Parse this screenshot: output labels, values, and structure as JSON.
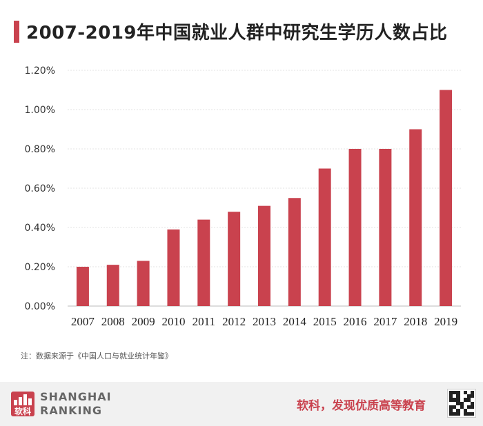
{
  "header": {
    "title": "2007-2019年中国就业人群中研究生学历人数占比"
  },
  "chart_data": {
    "type": "bar",
    "title": "2007-2019年中国就业人群中研究生学历人数占比",
    "categories": [
      "2007",
      "2008",
      "2009",
      "2010",
      "2011",
      "2012",
      "2013",
      "2014",
      "2015",
      "2016",
      "2017",
      "2018",
      "2019"
    ],
    "values": [
      0.2,
      0.21,
      0.23,
      0.39,
      0.44,
      0.48,
      0.51,
      0.55,
      0.7,
      0.8,
      0.8,
      0.9,
      1.1
    ],
    "yticks": [
      "0.00%",
      "0.20%",
      "0.40%",
      "0.60%",
      "0.80%",
      "1.00%",
      "1.20%"
    ],
    "ylim": [
      0,
      1.2
    ],
    "xlabel": "",
    "ylabel": "",
    "grid": true,
    "bar_color": "#c9424e"
  },
  "note": "注：数据来源于《中国人口与就业统计年鉴》",
  "footer": {
    "logo_cn": "软科",
    "logo_line1": "SHANGHAI",
    "logo_line2": "RANKING",
    "slogan": "软科，发现优质高等教育",
    "accent": "#c9424e"
  }
}
